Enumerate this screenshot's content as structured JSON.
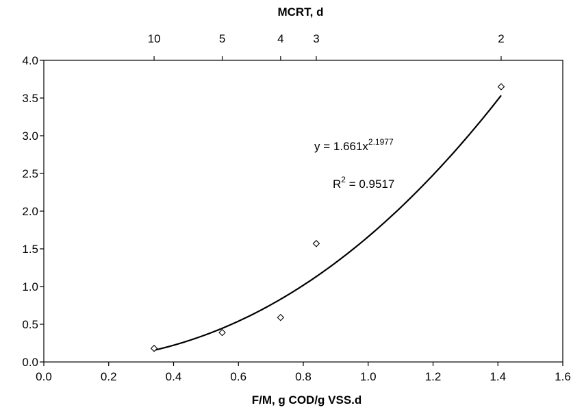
{
  "chart_data": {
    "type": "scatter",
    "title": "",
    "xlabel": "F/M, g COD/g VSS.d",
    "ylabel": "",
    "xlim": [
      0.0,
      1.6
    ],
    "ylim": [
      0.0,
      4.0
    ],
    "x_ticks": [
      "0.0",
      "0.2",
      "0.4",
      "0.6",
      "0.8",
      "1.0",
      "1.2",
      "1.4",
      "1.6"
    ],
    "y_ticks": [
      "0.0",
      "0.5",
      "1.0",
      "1.5",
      "2.0",
      "2.5",
      "3.0",
      "3.5",
      "4.0"
    ],
    "secondary_x_axis": {
      "label": "MCRT, d",
      "position": "top",
      "ticks": [
        {
          "label": "10",
          "at_fm": 0.34
        },
        {
          "label": "5",
          "at_fm": 0.55
        },
        {
          "label": "4",
          "at_fm": 0.73
        },
        {
          "label": "3",
          "at_fm": 0.84
        },
        {
          "label": "2",
          "at_fm": 1.41
        }
      ]
    },
    "series": [
      {
        "marker": "diamond",
        "x": [
          0.34,
          0.55,
          0.73,
          0.84,
          1.41
        ],
        "y": [
          0.18,
          0.39,
          0.59,
          1.57,
          3.65
        ]
      }
    ],
    "trendline": {
      "type": "power",
      "coefficient": 1.661,
      "exponent": 2.1977,
      "x_range": [
        0.34,
        1.41
      ],
      "equation_prefix": "y = 1.661x",
      "equation_exponent": "2.1977",
      "r2_prefix": "R",
      "r2_superscript": "2",
      "r2_value": " = 0.9517"
    },
    "grid": false,
    "legend": "none"
  }
}
